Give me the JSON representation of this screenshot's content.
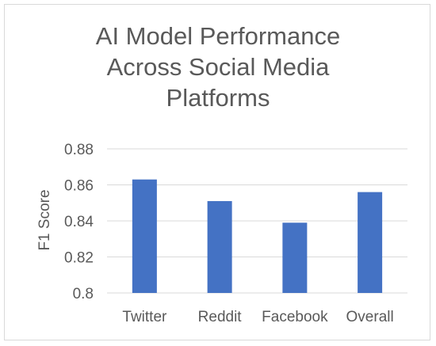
{
  "chart_data": {
    "type": "bar",
    "title_lines": [
      "AI Model Performance",
      "Across Social Media",
      "Platforms"
    ],
    "xlabel": "",
    "ylabel": "F1 Score",
    "categories": [
      "Twitter",
      "Reddit",
      "Facebook",
      "Overall"
    ],
    "values": [
      0.863,
      0.851,
      0.839,
      0.856
    ],
    "ylim": [
      0.8,
      0.88
    ],
    "yticks": [
      "0.8",
      "0.82",
      "0.84",
      "0.86",
      "0.88"
    ],
    "bar_color": "#4472c4",
    "grid": true,
    "legend": "none"
  }
}
